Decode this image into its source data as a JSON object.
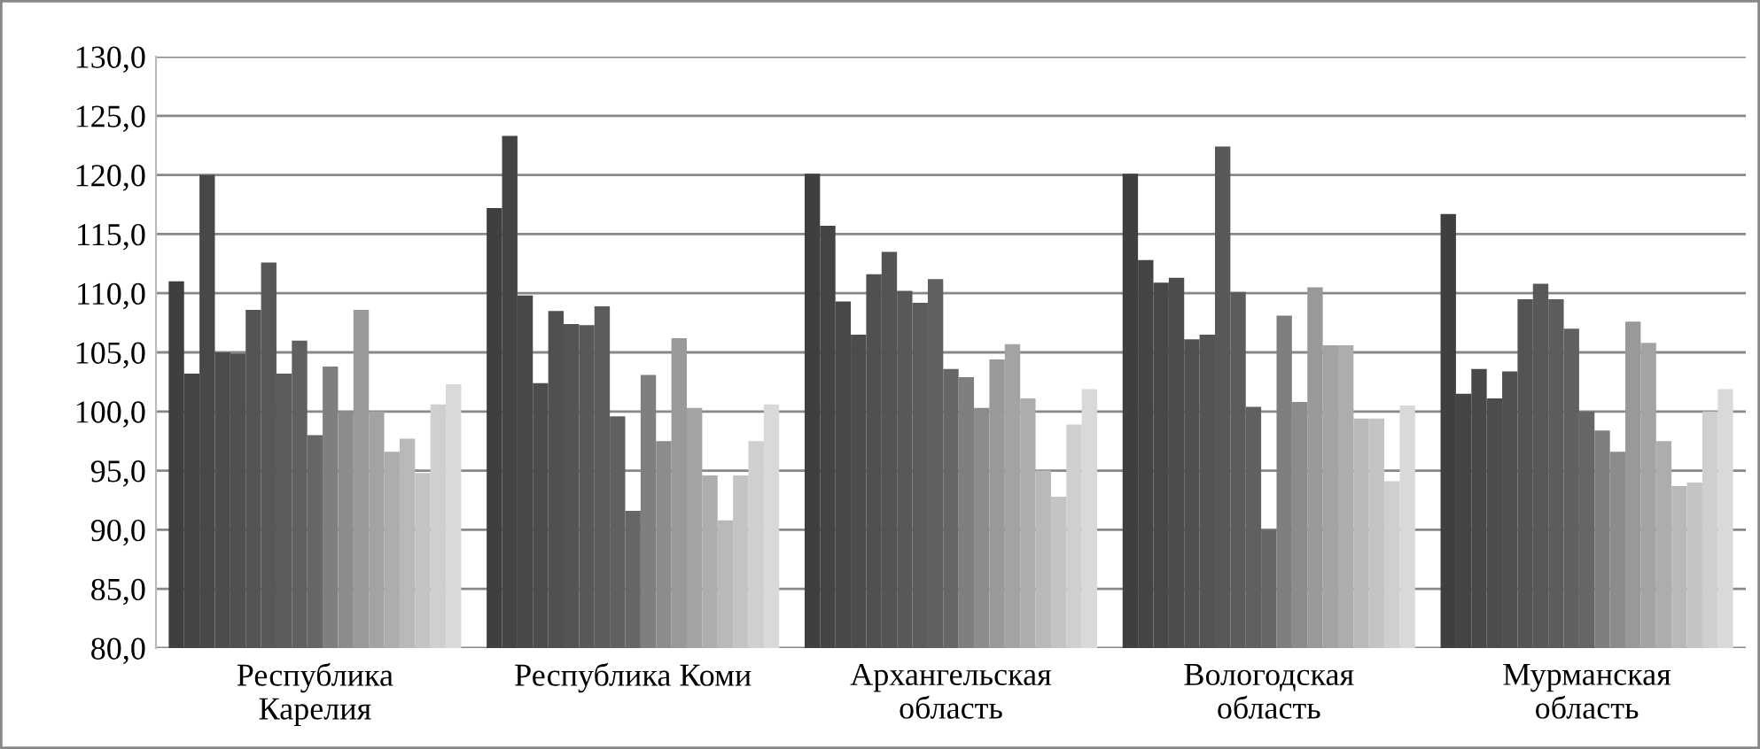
{
  "chart_data": {
    "type": "bar",
    "categories": [
      "Республика\nКарелия",
      "Республика Коми",
      "Архангельская\nобласть",
      "Вологодская\nобласть",
      "Мурманская\nобласть"
    ],
    "ylim": [
      80,
      130
    ],
    "yticks": [
      {
        "value": 80,
        "label": "80,0"
      },
      {
        "value": 85,
        "label": "85,0"
      },
      {
        "value": 90,
        "label": "90,0"
      },
      {
        "value": 95,
        "label": "95,0"
      },
      {
        "value": 100,
        "label": "100,0"
      },
      {
        "value": 105,
        "label": "105,0"
      },
      {
        "value": 110,
        "label": "110,0"
      },
      {
        "value": 115,
        "label": "115,0"
      },
      {
        "value": 120,
        "label": "120,0"
      },
      {
        "value": 125,
        "label": "125,0"
      },
      {
        "value": 130,
        "label": "130,0"
      }
    ],
    "grid": "y",
    "legend": false,
    "series": [
      {
        "color": "#3f3f3f",
        "values": [
          111.0,
          117.2,
          120.1,
          120.1,
          116.7
        ]
      },
      {
        "color": "#444444",
        "values": [
          103.2,
          123.3,
          115.7,
          112.8,
          101.5
        ]
      },
      {
        "color": "#484848",
        "values": [
          120.0,
          109.8,
          109.3,
          110.9,
          103.6
        ]
      },
      {
        "color": "#4c4c4c",
        "values": [
          105.0,
          102.4,
          106.5,
          111.3,
          101.1
        ]
      },
      {
        "color": "#505050",
        "values": [
          104.9,
          108.5,
          111.6,
          106.1,
          103.4
        ]
      },
      {
        "color": "#545454",
        "values": [
          108.6,
          107.4,
          113.5,
          106.5,
          109.5
        ]
      },
      {
        "color": "#585858",
        "values": [
          112.6,
          107.3,
          110.2,
          122.4,
          110.8
        ]
      },
      {
        "color": "#5c5c5c",
        "values": [
          103.2,
          108.9,
          109.2,
          110.1,
          109.5
        ]
      },
      {
        "color": "#606060",
        "values": [
          106.0,
          99.6,
          111.2,
          100.4,
          107.0
        ]
      },
      {
        "color": "#666666",
        "values": [
          98.0,
          91.6,
          103.6,
          90.0,
          100.0
        ]
      },
      {
        "color": "#7f7f7f",
        "values": [
          103.8,
          103.1,
          102.9,
          108.1,
          98.4
        ]
      },
      {
        "color": "#8c8c8c",
        "values": [
          100.0,
          97.5,
          100.3,
          100.8,
          96.6
        ]
      },
      {
        "color": "#999999",
        "values": [
          108.6,
          106.2,
          104.4,
          110.5,
          107.6
        ]
      },
      {
        "color": "#a3a3a3",
        "values": [
          100.0,
          100.3,
          105.7,
          105.6,
          105.8
        ]
      },
      {
        "color": "#adadad",
        "values": [
          96.6,
          94.6,
          101.1,
          105.6,
          97.5
        ]
      },
      {
        "color": "#b9b9b9",
        "values": [
          97.7,
          90.8,
          95.0,
          99.4,
          93.7
        ]
      },
      {
        "color": "#c4c4c4",
        "values": [
          94.8,
          94.6,
          92.8,
          99.4,
          94.0
        ]
      },
      {
        "color": "#cfcfcf",
        "values": [
          100.6,
          97.5,
          98.9,
          94.1,
          100.0
        ]
      },
      {
        "color": "#d9d9d9",
        "values": [
          102.3,
          100.6,
          101.9,
          100.5,
          101.9
        ]
      }
    ]
  }
}
